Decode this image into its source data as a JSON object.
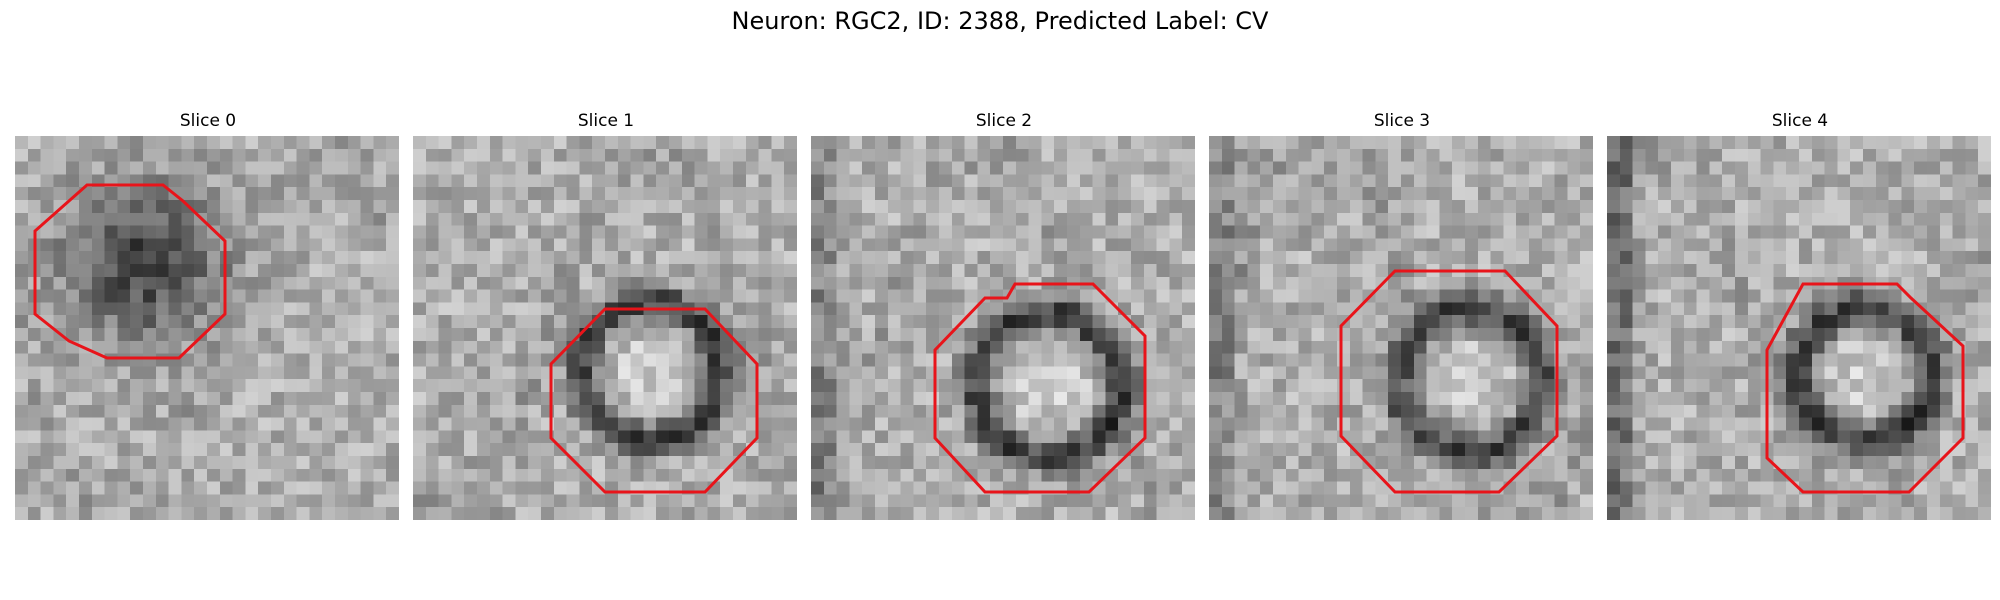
{
  "figure": {
    "title": "Neuron: RGC2, ID: 2388, Predicted Label: CV"
  },
  "colors": {
    "contour": "#e8141a",
    "background": "#ffffff"
  },
  "slices": [
    {
      "label": "Slice 0",
      "blob": "dark",
      "blob_center": [
        0.33,
        0.33
      ],
      "blob_radius": 0.2
    },
    {
      "label": "Slice 1",
      "blob": "ring",
      "blob_center": [
        0.62,
        0.61
      ],
      "blob_radius": 0.21
    },
    {
      "label": "Slice 2",
      "blob": "ring",
      "blob_center": [
        0.62,
        0.65
      ],
      "blob_radius": 0.22
    },
    {
      "label": "Slice 3",
      "blob": "ring",
      "blob_center": [
        0.68,
        0.64
      ],
      "blob_radius": 0.22
    },
    {
      "label": "Slice 4",
      "blob": "ring",
      "blob_center": [
        0.67,
        0.62
      ],
      "blob_radius": 0.2
    }
  ]
}
